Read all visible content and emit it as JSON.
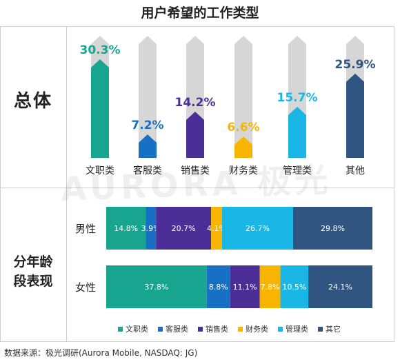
{
  "title": "用户希望的工作类型",
  "section_labels": {
    "overall": "总体",
    "age": "分年龄段表现"
  },
  "source": "数据来源：极光调研(Aurora Mobile, NASDAQ: JG)",
  "watermark": "AURORA 极光",
  "colors": {
    "文职类": "#18a58f",
    "客服类": "#1870c4",
    "销售类": "#4b2f97",
    "财务类": "#f7b500",
    "管理类": "#1ab7e6",
    "其他": "#2f5580",
    "其它": "#2f5580",
    "track": "#d6d6d6"
  },
  "chart_data": [
    {
      "type": "bar",
      "title": "总体",
      "categories": [
        "文职类",
        "客服类",
        "销售类",
        "财务类",
        "管理类",
        "其他"
      ],
      "values": [
        30.3,
        7.2,
        14.2,
        6.6,
        15.7,
        25.9
      ],
      "value_labels": [
        "30.3%",
        "7.2%",
        "14.2%",
        "6.6%",
        "15.7%",
        "25.9%"
      ],
      "unit": "%",
      "ylim": [
        0,
        32
      ]
    },
    {
      "type": "bar",
      "stacked": true,
      "orientation": "horizontal",
      "title": "分年龄段表现",
      "categories": [
        "男性",
        "女性"
      ],
      "series": [
        {
          "name": "文职类",
          "values": [
            14.8,
            37.8
          ],
          "labels": [
            "14.8%",
            "37.8%"
          ]
        },
        {
          "name": "客服类",
          "values": [
            3.9,
            8.8
          ],
          "labels": [
            "3.9%",
            "8.8%"
          ]
        },
        {
          "name": "销售类",
          "values": [
            20.7,
            11.1
          ],
          "labels": [
            "20.7%",
            "11.1%"
          ]
        },
        {
          "name": "财务类",
          "values": [
            4.1,
            7.8
          ],
          "labels": [
            "4.1%",
            "7.8%"
          ]
        },
        {
          "name": "管理类",
          "values": [
            26.7,
            10.5
          ],
          "labels": [
            "26.7%",
            "10.5%"
          ]
        },
        {
          "name": "其它",
          "values": [
            29.8,
            24.1
          ],
          "labels": [
            "29.8%",
            "24.1%"
          ]
        }
      ],
      "xlim": [
        0,
        100
      ],
      "legend": "bottom"
    }
  ]
}
